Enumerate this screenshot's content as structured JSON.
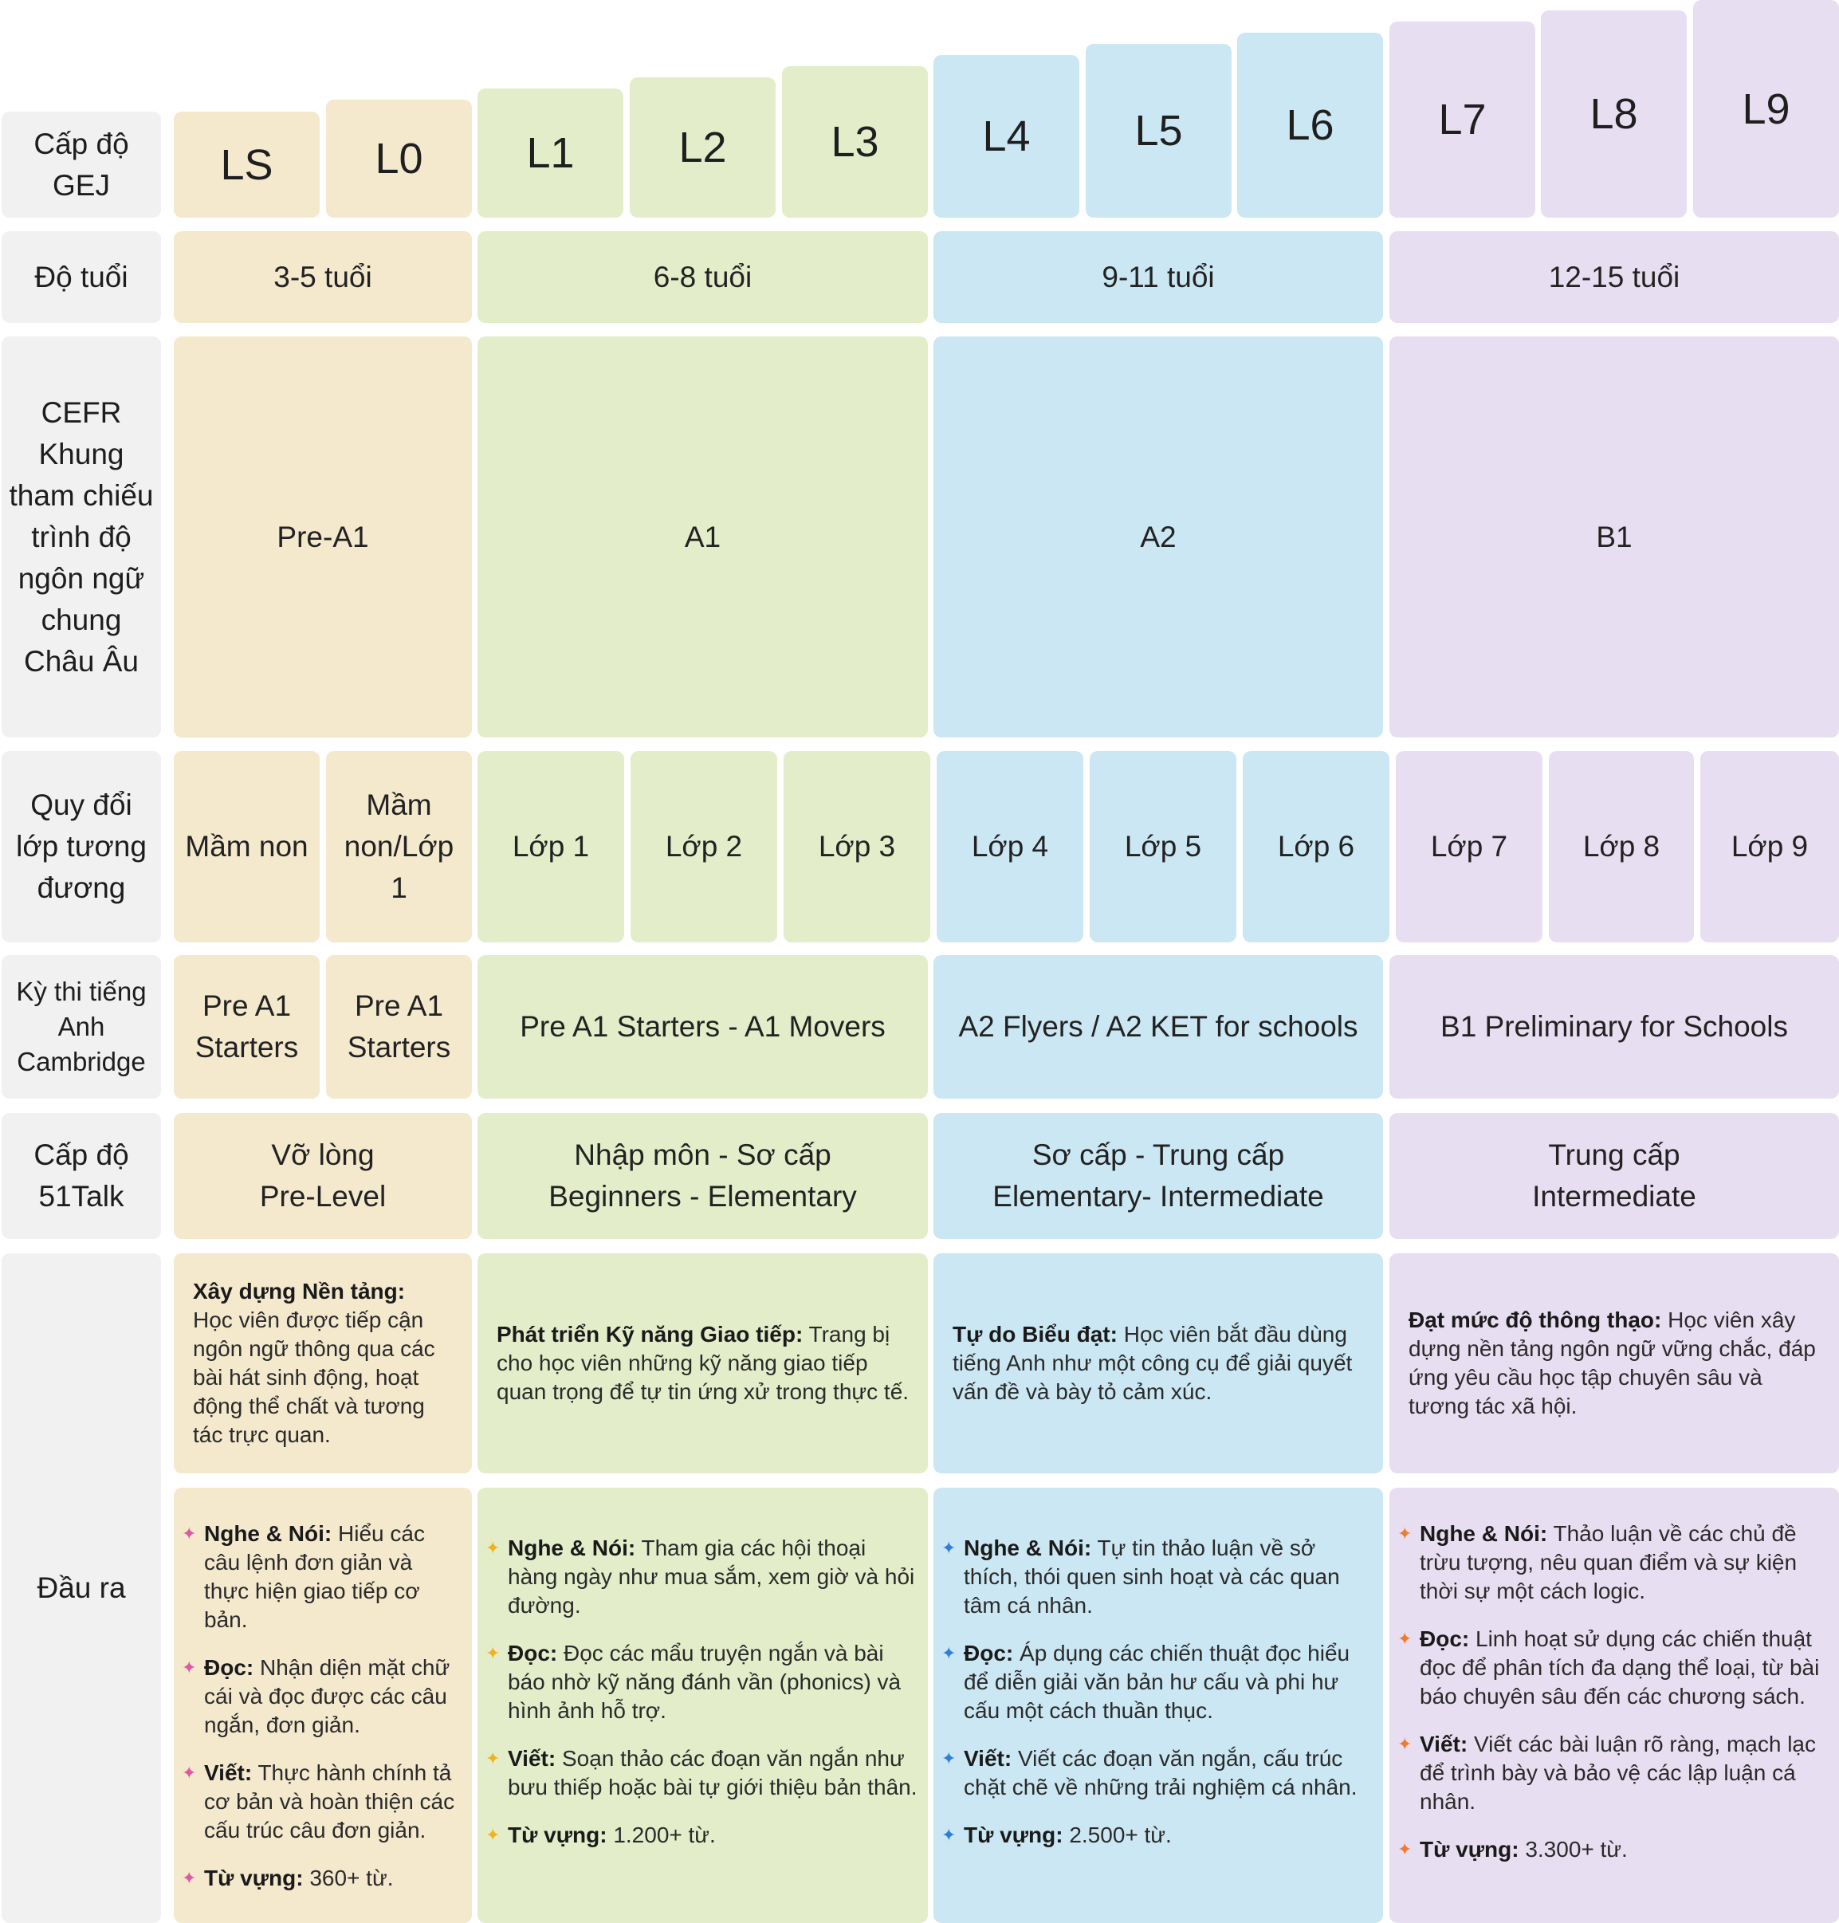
{
  "row_labels": {
    "level": "Cấp độ GEJ",
    "age": "Độ tuổi",
    "cefr": "CEFR Khung tham chiếu trình độ ngôn ngữ chung Châu Âu",
    "grade": "Quy đổi lớp tương đương",
    "cambridge": "Kỳ thi tiếng Anh Cambridge",
    "talk51": "Cấp độ 51Talk",
    "output": "Đầu ra"
  },
  "levels": [
    "LS",
    "L0",
    "L1",
    "L2",
    "L3",
    "L4",
    "L5",
    "L6",
    "L7",
    "L8",
    "L9"
  ],
  "ages": [
    "3-5 tuổi",
    "6-8 tuổi",
    "9-11 tuổi",
    "12-15 tuổi"
  ],
  "cefr": [
    "Pre-A1",
    "A1",
    "A2",
    "B1"
  ],
  "grades": [
    "Mầm non",
    "Mầm non/Lớp 1",
    "Lớp 1",
    "Lớp 2",
    "Lớp 3",
    "Lớp 4",
    "Lớp 5",
    "Lớp 6",
    "Lớp 7",
    "Lớp 8",
    "Lớp 9"
  ],
  "cambridge": [
    "Pre A1 Starters",
    "Pre A1 Starters",
    "Pre A1 Starters - A1 Movers",
    "A2 Flyers / A2 KET for schools",
    "B1 Preliminary for Schools"
  ],
  "talk51": [
    {
      "line1": "Vỡ lòng",
      "line2": "Pre-Level"
    },
    {
      "line1": "Nhập môn - Sơ cấp",
      "line2": "Beginners - Elementary"
    },
    {
      "line1": "Sơ cấp - Trung cấp",
      "line2": "Elementary- Intermediate"
    },
    {
      "line1": "Trung cấp",
      "line2": "Intermediate"
    }
  ],
  "descriptions": [
    {
      "title": "Xây dựng Nền tảng:",
      "text": "Học viên được tiếp cận ngôn ngữ thông qua các bài hát sinh động, hoạt động thể chất và tương tác trực quan."
    },
    {
      "title": "Phát triển Kỹ năng Giao tiếp:",
      "text": "Trang bị cho học viên những kỹ năng giao tiếp quan trọng để tự tin ứng xử trong thực tế."
    },
    {
      "title": "Tự do Biểu đạt:",
      "text": "Học viên bắt đầu dùng tiếng Anh như một công cụ để giải quyết vấn đề và bày tỏ cảm xúc."
    },
    {
      "title": "Đạt mức độ thông thạo:",
      "text": "Học viên xây dựng nền tảng ngôn ngữ vững chắc, đáp ứng yêu cầu học tập chuyên sâu và tương tác xã hội."
    }
  ],
  "bullet_glyph": "✦",
  "outcomes": [
    [
      {
        "title": "Nghe & Nói:",
        "text": "Hiểu các câu lệnh đơn giản và thực hiện giao tiếp cơ bản."
      },
      {
        "title": "Đọc:",
        "text": "Nhận diện mặt chữ cái và đọc được các câu ngắn, đơn giản."
      },
      {
        "title": "Viết:",
        "text": "Thực hành chính tả cơ bản và hoàn thiện các cấu trúc câu đơn giản."
      },
      {
        "title": "Từ vựng:",
        "text": "360+ từ."
      }
    ],
    [
      {
        "title": "Nghe & Nói:",
        "text": "Tham gia các hội thoại hàng ngày như mua sắm, xem giờ và hỏi đường."
      },
      {
        "title": "Đọc:",
        "text": "Đọc các mẩu truyện ngắn và bài báo nhờ kỹ năng đánh vần (phonics) và hình ảnh hỗ trợ."
      },
      {
        "title": "Viết:",
        "text": "Soạn thảo các đoạn văn ngắn như bưu thiếp hoặc bài tự giới thiệu bản thân."
      },
      {
        "title": "Từ vựng:",
        "text": "1.200+ từ."
      }
    ],
    [
      {
        "title": "Nghe & Nói:",
        "text": "Tự tin thảo luận về sở thích, thói quen sinh hoạt và các quan tâm cá nhân."
      },
      {
        "title": "Đọc:",
        "text": "Áp dụng các chiến thuật đọc hiểu để diễn giải văn bản hư cấu và phi hư cấu một cách thuần thục."
      },
      {
        "title": "Viết:",
        "text": "Viết các đoạn văn ngắn, cấu trúc chặt chẽ về những trải nghiệm cá nhân."
      },
      {
        "title": "Từ vựng:",
        "text": "2.500+ từ."
      }
    ],
    [
      {
        "title": "Nghe & Nói:",
        "text": "Thảo luận về các chủ đề trừu tượng, nêu quan điểm và sự kiện thời sự một cách logic."
      },
      {
        "title": "Đọc:",
        "text": "Linh hoạt sử dụng các chiến thuật đọc để phân tích đa dạng thể loại, từ bài báo chuyên sâu đến các chương sách."
      },
      {
        "title": "Viết:",
        "text": "Viết các bài luận rõ ràng, mạch lạc để trình bày và bảo vệ các lập luận cá nhân."
      },
      {
        "title": "Từ vựng:",
        "text": "3.300+ từ."
      }
    ]
  ],
  "colors": {
    "yellow": "#f4e8cd",
    "green": "#e4edca",
    "blue": "#cbe7f3",
    "purple": "#e8def1",
    "label": "#f1f1f1"
  }
}
